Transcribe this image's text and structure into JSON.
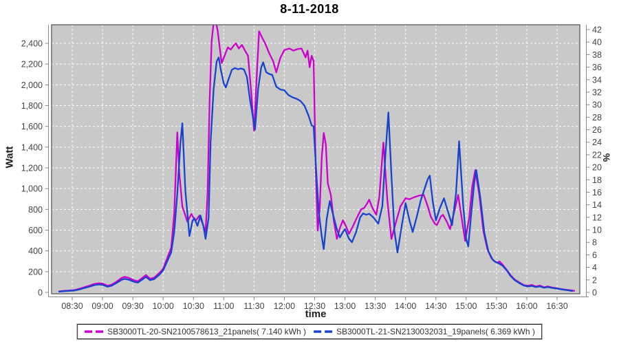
{
  "title": "8-11-2018",
  "chart_data": {
    "type": "line",
    "title": "8-11-2018",
    "xlabel": "time",
    "ylabel_left": "Watt",
    "ylabel_right": "%",
    "grid": true,
    "legend_position": "bottom",
    "plot_bg": "#c9c9c9",
    "grid_color": "#ffffff",
    "x_ticks": [
      "08:30",
      "09:00",
      "09:30",
      "10:00",
      "10:30",
      "11:00",
      "11:30",
      "12:00",
      "12:30",
      "13:00",
      "13:30",
      "14:00",
      "14:30",
      "15:00",
      "15:30",
      "16:00",
      "16:30"
    ],
    "y_left_ticks": [
      0,
      200,
      400,
      600,
      800,
      1000,
      1200,
      1400,
      1600,
      1800,
      2000,
      2200,
      2400
    ],
    "y_left_range": [
      0,
      2580
    ],
    "y_right_ticks": [
      0,
      2,
      4,
      6,
      8,
      10,
      12,
      14,
      16,
      18,
      20,
      22,
      24,
      26,
      28,
      30,
      32,
      34,
      36,
      38,
      40,
      42
    ],
    "y_right_range": [
      0,
      42.8
    ],
    "series": [
      {
        "name": "SB3000TL-20-SN2100578613_21panels( 7.140 kWh )",
        "color": "#cc00cc",
        "points": [
          [
            "08:17",
            10
          ],
          [
            "08:22",
            15
          ],
          [
            "08:27",
            18
          ],
          [
            "08:32",
            22
          ],
          [
            "08:37",
            35
          ],
          [
            "08:42",
            50
          ],
          [
            "08:47",
            65
          ],
          [
            "08:52",
            82
          ],
          [
            "08:56",
            88
          ],
          [
            "09:00",
            85
          ],
          [
            "09:05",
            64
          ],
          [
            "09:09",
            75
          ],
          [
            "09:14",
            105
          ],
          [
            "09:19",
            140
          ],
          [
            "09:22",
            150
          ],
          [
            "09:26",
            140
          ],
          [
            "09:31",
            118
          ],
          [
            "09:35",
            108
          ],
          [
            "09:40",
            145
          ],
          [
            "09:43",
            168
          ],
          [
            "09:47",
            132
          ],
          [
            "09:51",
            142
          ],
          [
            "09:56",
            185
          ],
          [
            "10:00",
            228
          ],
          [
            "10:04",
            330
          ],
          [
            "10:08",
            430
          ],
          [
            "10:11",
            760
          ],
          [
            "10:14",
            1542
          ],
          [
            "10:16",
            1150
          ],
          [
            "10:19",
            830
          ],
          [
            "10:24",
            682
          ],
          [
            "10:28",
            755
          ],
          [
            "10:32",
            688
          ],
          [
            "10:36",
            741
          ],
          [
            "10:40",
            640
          ],
          [
            "10:42",
            585
          ],
          [
            "10:44",
            950
          ],
          [
            "10:46",
            1850
          ],
          [
            "10:48",
            2420
          ],
          [
            "10:50",
            2600
          ],
          [
            "10:52",
            2620
          ],
          [
            "10:54",
            2520
          ],
          [
            "10:56",
            2360
          ],
          [
            "10:58",
            2210
          ],
          [
            "11:01",
            2285
          ],
          [
            "11:04",
            2360
          ],
          [
            "11:07",
            2340
          ],
          [
            "11:10",
            2380
          ],
          [
            "11:12",
            2400
          ],
          [
            "11:15",
            2350
          ],
          [
            "11:18",
            2385
          ],
          [
            "11:21",
            2330
          ],
          [
            "11:24",
            2280
          ],
          [
            "11:27",
            1950
          ],
          [
            "11:30",
            1558
          ],
          [
            "11:33",
            2150
          ],
          [
            "11:35",
            2516
          ],
          [
            "11:38",
            2455
          ],
          [
            "11:41",
            2400
          ],
          [
            "11:45",
            2305
          ],
          [
            "11:49",
            2225
          ],
          [
            "11:52",
            2120
          ],
          [
            "11:56",
            2260
          ],
          [
            "12:00",
            2335
          ],
          [
            "12:05",
            2350
          ],
          [
            "12:09",
            2330
          ],
          [
            "12:13",
            2345
          ],
          [
            "12:17",
            2350
          ],
          [
            "12:21",
            2264
          ],
          [
            "12:23",
            2330
          ],
          [
            "12:25",
            2170
          ],
          [
            "12:27",
            2280
          ],
          [
            "12:29",
            2230
          ],
          [
            "12:31",
            1200
          ],
          [
            "12:33",
            596
          ],
          [
            "12:35",
            800
          ],
          [
            "12:37",
            1300
          ],
          [
            "12:39",
            1536
          ],
          [
            "12:41",
            1430
          ],
          [
            "12:43",
            1050
          ],
          [
            "12:46",
            940
          ],
          [
            "12:49",
            690
          ],
          [
            "12:52",
            515
          ],
          [
            "12:55",
            620
          ],
          [
            "12:58",
            695
          ],
          [
            "13:01",
            638
          ],
          [
            "13:04",
            565
          ],
          [
            "13:08",
            640
          ],
          [
            "13:12",
            724
          ],
          [
            "13:16",
            800
          ],
          [
            "13:19",
            814
          ],
          [
            "13:22",
            858
          ],
          [
            "13:24",
            894
          ],
          [
            "13:27",
            818
          ],
          [
            "13:31",
            748
          ],
          [
            "13:34",
            920
          ],
          [
            "13:38",
            1443
          ],
          [
            "13:42",
            880
          ],
          [
            "13:46",
            515
          ],
          [
            "13:50",
            660
          ],
          [
            "13:55",
            830
          ],
          [
            "14:00",
            907
          ],
          [
            "14:04",
            898
          ],
          [
            "14:08",
            915
          ],
          [
            "14:13",
            932
          ],
          [
            "14:18",
            940
          ],
          [
            "14:22",
            828
          ],
          [
            "14:25",
            728
          ],
          [
            "14:29",
            662
          ],
          [
            "14:31",
            649
          ],
          [
            "14:35",
            732
          ],
          [
            "14:37",
            748
          ],
          [
            "14:41",
            678
          ],
          [
            "14:44",
            609
          ],
          [
            "14:48",
            770
          ],
          [
            "14:52",
            940
          ],
          [
            "14:56",
            690
          ],
          [
            "14:59",
            496
          ],
          [
            "15:03",
            720
          ],
          [
            "15:06",
            1020
          ],
          [
            "15:09",
            1178
          ],
          [
            "15:13",
            940
          ],
          [
            "15:17",
            590
          ],
          [
            "15:21",
            415
          ],
          [
            "15:25",
            330
          ],
          [
            "15:28",
            300
          ],
          [
            "15:31",
            286
          ],
          [
            "15:33",
            298
          ],
          [
            "15:36",
            268
          ],
          [
            "15:40",
            218
          ],
          [
            "15:44",
            166
          ],
          [
            "15:48",
            124
          ],
          [
            "15:53",
            94
          ],
          [
            "15:57",
            70
          ],
          [
            "16:01",
            64
          ],
          [
            "16:05",
            72
          ],
          [
            "16:09",
            57
          ],
          [
            "16:13",
            66
          ],
          [
            "16:17",
            50
          ],
          [
            "16:21",
            58
          ],
          [
            "16:25",
            47
          ],
          [
            "16:29",
            42
          ],
          [
            "16:33",
            34
          ],
          [
            "16:37",
            28
          ],
          [
            "16:42",
            22
          ],
          [
            "16:47",
            16
          ]
        ]
      },
      {
        "name": "SB3000TL-21-SN2130032031_19panels( 6.369 kWh )",
        "color": "#1642cd",
        "points": [
          [
            "08:17",
            8
          ],
          [
            "08:22",
            12
          ],
          [
            "08:27",
            15
          ],
          [
            "08:32",
            18
          ],
          [
            "08:37",
            28
          ],
          [
            "08:42",
            42
          ],
          [
            "08:47",
            55
          ],
          [
            "08:52",
            70
          ],
          [
            "08:56",
            76
          ],
          [
            "09:00",
            73
          ],
          [
            "09:05",
            55
          ],
          [
            "09:09",
            65
          ],
          [
            "09:14",
            92
          ],
          [
            "09:19",
            122
          ],
          [
            "09:22",
            131
          ],
          [
            "09:26",
            122
          ],
          [
            "09:31",
            103
          ],
          [
            "09:35",
            95
          ],
          [
            "09:40",
            128
          ],
          [
            "09:43",
            150
          ],
          [
            "09:47",
            118
          ],
          [
            "09:51",
            128
          ],
          [
            "09:56",
            168
          ],
          [
            "10:00",
            212
          ],
          [
            "10:04",
            300
          ],
          [
            "10:08",
            385
          ],
          [
            "10:11",
            580
          ],
          [
            "10:14",
            950
          ],
          [
            "10:17",
            1430
          ],
          [
            "10:19",
            1630
          ],
          [
            "10:22",
            980
          ],
          [
            "10:26",
            543
          ],
          [
            "10:29",
            688
          ],
          [
            "10:31",
            715
          ],
          [
            "10:34",
            642
          ],
          [
            "10:37",
            741
          ],
          [
            "10:40",
            635
          ],
          [
            "10:42",
            516
          ],
          [
            "10:45",
            720
          ],
          [
            "10:47",
            1450
          ],
          [
            "10:50",
            1960
          ],
          [
            "10:53",
            2225
          ],
          [
            "10:55",
            2264
          ],
          [
            "10:57",
            2150
          ],
          [
            "11:00",
            2015
          ],
          [
            "11:02",
            1975
          ],
          [
            "11:05",
            2062
          ],
          [
            "11:08",
            2145
          ],
          [
            "11:11",
            2162
          ],
          [
            "11:14",
            2150
          ],
          [
            "11:17",
            2158
          ],
          [
            "11:20",
            2148
          ],
          [
            "11:23",
            2075
          ],
          [
            "11:26",
            1855
          ],
          [
            "11:31",
            1569
          ],
          [
            "11:34",
            1960
          ],
          [
            "11:37",
            2165
          ],
          [
            "11:39",
            2217
          ],
          [
            "11:42",
            2122
          ],
          [
            "11:45",
            2105
          ],
          [
            "11:48",
            2096
          ],
          [
            "11:52",
            1982
          ],
          [
            "11:56",
            1955
          ],
          [
            "12:00",
            1948
          ],
          [
            "12:04",
            1902
          ],
          [
            "12:08",
            1880
          ],
          [
            "12:12",
            1866
          ],
          [
            "12:16",
            1845
          ],
          [
            "12:20",
            1798
          ],
          [
            "12:24",
            1702
          ],
          [
            "12:27",
            1610
          ],
          [
            "12:29",
            1598
          ],
          [
            "12:31",
            1250
          ],
          [
            "12:34",
            780
          ],
          [
            "12:37",
            540
          ],
          [
            "12:39",
            417
          ],
          [
            "12:42",
            710
          ],
          [
            "12:45",
            880
          ],
          [
            "12:48",
            758
          ],
          [
            "12:52",
            608
          ],
          [
            "12:55",
            530
          ],
          [
            "12:58",
            582
          ],
          [
            "13:00",
            609
          ],
          [
            "13:04",
            518
          ],
          [
            "13:07",
            483
          ],
          [
            "13:11",
            580
          ],
          [
            "13:15",
            722
          ],
          [
            "13:18",
            761
          ],
          [
            "13:21",
            748
          ],
          [
            "13:24",
            758
          ],
          [
            "13:28",
            724
          ],
          [
            "13:33",
            662
          ],
          [
            "13:37",
            830
          ],
          [
            "13:40",
            1320
          ],
          [
            "13:43",
            1734
          ],
          [
            "13:46",
            1130
          ],
          [
            "13:49",
            590
          ],
          [
            "13:52",
            384
          ],
          [
            "13:56",
            630
          ],
          [
            "14:00",
            860
          ],
          [
            "14:04",
            688
          ],
          [
            "14:07",
            582
          ],
          [
            "14:11",
            724
          ],
          [
            "14:15",
            885
          ],
          [
            "14:19",
            1005
          ],
          [
            "14:22",
            1092
          ],
          [
            "14:24",
            1125
          ],
          [
            "14:27",
            872
          ],
          [
            "14:30",
            695
          ],
          [
            "14:34",
            812
          ],
          [
            "14:38",
            907
          ],
          [
            "14:42",
            778
          ],
          [
            "14:46",
            649
          ],
          [
            "14:50",
            960
          ],
          [
            "14:53",
            1456
          ],
          [
            "14:57",
            840
          ],
          [
            "15:00",
            515
          ],
          [
            "15:02",
            443
          ],
          [
            "15:05",
            760
          ],
          [
            "15:08",
            1060
          ],
          [
            "15:10",
            1178
          ],
          [
            "15:14",
            910
          ],
          [
            "15:18",
            572
          ],
          [
            "15:22",
            398
          ],
          [
            "15:26",
            318
          ],
          [
            "15:29",
            294
          ],
          [
            "15:32",
            281
          ],
          [
            "15:36",
            258
          ],
          [
            "15:40",
            213
          ],
          [
            "15:44",
            158
          ],
          [
            "15:48",
            118
          ],
          [
            "15:53",
            87
          ],
          [
            "15:57",
            66
          ],
          [
            "16:01",
            57
          ],
          [
            "16:05",
            63
          ],
          [
            "16:09",
            51
          ],
          [
            "16:13",
            58
          ],
          [
            "16:17",
            45
          ],
          [
            "16:21",
            51
          ],
          [
            "16:25",
            43
          ],
          [
            "16:29",
            38
          ],
          [
            "16:33",
            31
          ],
          [
            "16:37",
            25
          ],
          [
            "16:42",
            19
          ],
          [
            "16:45",
            13
          ]
        ]
      }
    ]
  }
}
